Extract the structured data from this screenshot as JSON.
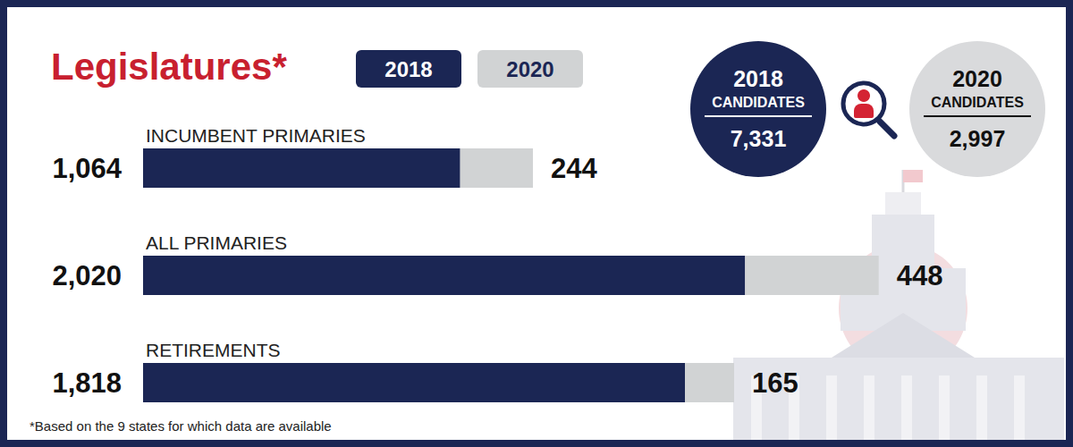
{
  "chart_data": {
    "type": "bar",
    "title": "Legislatures*",
    "orientation": "horizontal",
    "stacked": true,
    "data_labels": true,
    "tick_labels": "y",
    "grid": false,
    "categories": [
      "INCUMBENT PRIMARIES",
      "ALL PRIMARIES",
      "RETIREMENTS"
    ],
    "xlim": [
      0,
      3000
    ],
    "series": [
      {
        "name": "2018",
        "color": "#1b2654",
        "values": [
          1064,
          2020,
          1818
        ],
        "value_labels": [
          "1,064",
          "2,020",
          "1,818"
        ]
      },
      {
        "name": "2020",
        "color": "#d1d3d4",
        "values": [
          244,
          448,
          165
        ]
      }
    ]
  },
  "candidates": [
    {
      "heading": "2018",
      "subheading": "CANDIDATES",
      "value": 7331,
      "value_label": "7,331"
    },
    {
      "heading": "2020",
      "subheading": "CANDIDATES",
      "value": 2997,
      "value_label": "2,997"
    }
  ],
  "footnote": "*Based on the 9 states for which data are available"
}
